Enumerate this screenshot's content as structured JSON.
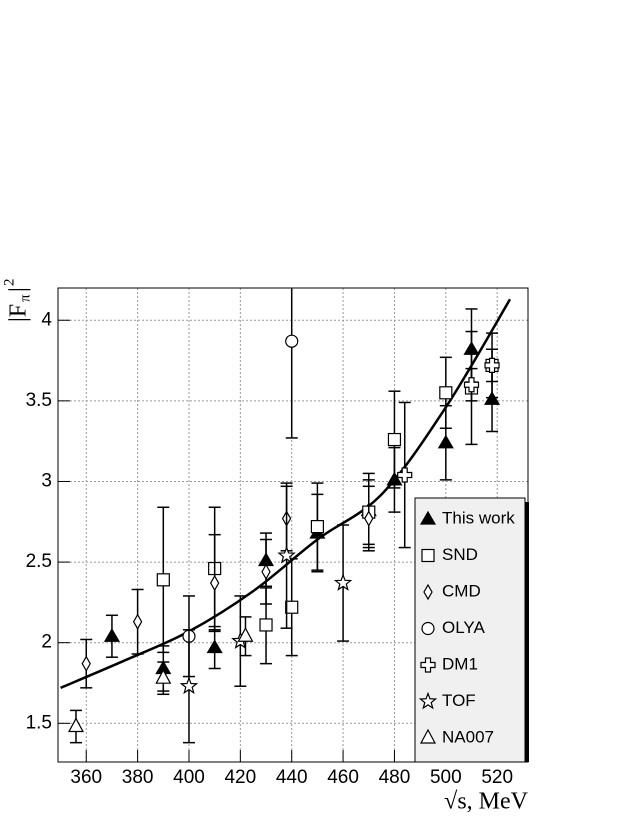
{
  "chart_data": {
    "type": "scatter",
    "xlabel": "√s, MeV",
    "ylabel_parts": [
      "|F",
      "π",
      "|",
      "2"
    ],
    "xlim": [
      349,
      532
    ],
    "ylim": [
      1.26,
      4.2
    ],
    "xticks": [
      360,
      380,
      400,
      420,
      440,
      460,
      480,
      500,
      520
    ],
    "yticks": [
      1.5,
      2,
      2.5,
      3,
      3.5,
      4
    ],
    "grid": true,
    "legend": "lower right",
    "series": [
      {
        "name": "This work",
        "marker": "triangle-filled",
        "color": "#000000",
        "x": [
          370,
          390,
          410,
          430,
          450,
          470,
          480,
          500,
          510,
          518
        ],
        "values": [
          2.04,
          1.84,
          1.97,
          2.51,
          2.68,
          2.82,
          3.01,
          3.24,
          3.82,
          3.51
        ],
        "errors": [
          0.13,
          0.14,
          0.13,
          0.17,
          0.24,
          0.23,
          0.2,
          0.23,
          0.25,
          0.2
        ]
      },
      {
        "name": "SND",
        "marker": "square",
        "color": "#000000",
        "x": [
          390,
          410,
          430,
          440,
          450,
          470,
          480,
          500,
          510,
          518
        ],
        "values": [
          2.39,
          2.46,
          2.11,
          2.22,
          2.72,
          2.81,
          3.26,
          3.55,
          3.58,
          3.72
        ],
        "errors": [
          0.45,
          0.38,
          0.24,
          0.3,
          0.27,
          0.2,
          0.3,
          0.22,
          0.35,
          0.2
        ]
      },
      {
        "name": "CMD",
        "marker": "diamond",
        "color": "#000000",
        "x": [
          360,
          380,
          410,
          430,
          438,
          470
        ],
        "values": [
          1.87,
          2.13,
          2.37,
          2.44,
          2.77,
          2.77
        ],
        "errors": [
          0.15,
          0.2,
          0.3,
          0.2,
          0.2,
          0.2
        ]
      },
      {
        "name": "OLYA",
        "marker": "circle",
        "color": "#000000",
        "x": [
          400,
          440
        ],
        "values": [
          2.04,
          3.87
        ],
        "errors": [
          0.25,
          0.6
        ]
      },
      {
        "name": "DM1",
        "marker": "cross",
        "color": "#000000",
        "x": [
          484,
          510,
          518
        ],
        "values": [
          3.04,
          3.6,
          3.72
        ],
        "errors": [
          0.45,
          0.1,
          0.1
        ]
      },
      {
        "name": "TOF",
        "marker": "star",
        "color": "#000000",
        "x": [
          400,
          420,
          438,
          460
        ],
        "values": [
          1.73,
          2.01,
          2.54,
          2.37
        ],
        "errors": [
          0.35,
          0.28,
          0.45,
          0.36
        ]
      },
      {
        "name": "NA007",
        "marker": "triangle",
        "color": "#000000",
        "x": [
          356,
          390,
          422
        ],
        "values": [
          1.48,
          1.78,
          2.04
        ],
        "errors": [
          0.1,
          0.1,
          0.12
        ]
      }
    ],
    "curve": {
      "x": [
        350,
        375,
        400,
        425,
        450,
        475,
        500,
        525
      ],
      "values": [
        1.72,
        1.89,
        2.07,
        2.32,
        2.64,
        2.92,
        3.46,
        4.13
      ]
    }
  }
}
